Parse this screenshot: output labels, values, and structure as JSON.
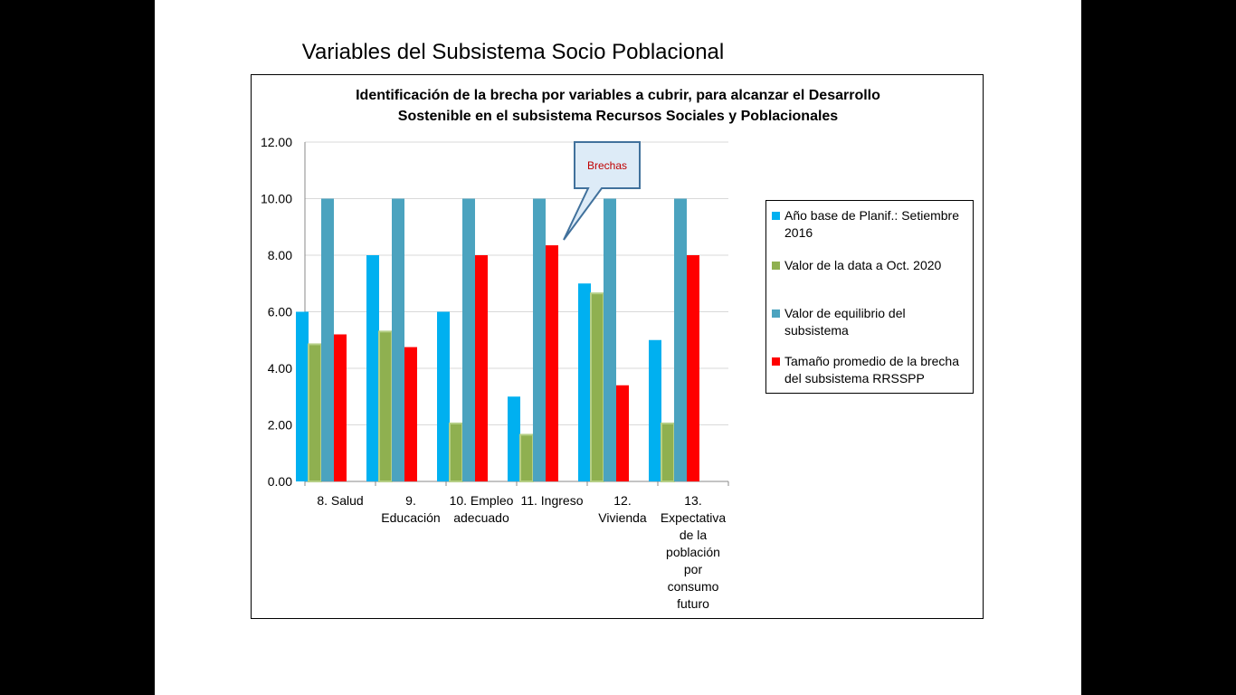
{
  "slide": {
    "title": "Variables del Subsistema Socio Poblacional"
  },
  "chart_data": {
    "type": "bar",
    "title_lines": [
      "Identificación de la brecha por variables a cubrir, para alcanzar el Desarrollo",
      "Sostenible en el subsistema Recursos Sociales y Poblacionales"
    ],
    "categories": [
      [
        "8. Salud"
      ],
      [
        "9.",
        "Educación"
      ],
      [
        "10. Empleo",
        "adecuado"
      ],
      [
        "11. Ingreso"
      ],
      [
        "12.",
        "Vivienda"
      ],
      [
        "13.",
        "Expectativa",
        "de la",
        "población",
        "por",
        "consumo",
        "futuro"
      ]
    ],
    "series": [
      {
        "name": "Año base de Planif.: Setiembre 2016",
        "label_lines": [
          "Año base de Planif.: Setiembre",
          "2016"
        ],
        "color": "#00B0F0",
        "values": [
          6,
          8,
          6,
          3,
          7,
          5
        ]
      },
      {
        "name": "Valor de la data a Oct.  2020",
        "label_lines": [
          "Valor de la data a Oct.  2020"
        ],
        "color": "#8FB050",
        "values": [
          4.85,
          5.3,
          2.05,
          1.65,
          6.65,
          2.05
        ]
      },
      {
        "name": "Valor de equilibrio del subsistema",
        "label_lines": [
          "Valor de equilibrio del",
          "subsistema"
        ],
        "color": "#4BA3BF",
        "values": [
          10,
          10,
          10,
          10,
          10,
          10
        ]
      },
      {
        "name": "Tamaño promedio de la brecha del subsistema RRSSPP",
        "label_lines": [
          "Tamaño promedio de la brecha",
          "del subsistema RRSSPP"
        ],
        "color": "#FF0000",
        "values": [
          5.2,
          4.75,
          8,
          8.35,
          3.4,
          8
        ]
      }
    ],
    "ylim": [
      0,
      12
    ],
    "yticks": [
      "0.00",
      "2.00",
      "4.00",
      "6.00",
      "8.00",
      "10.00",
      "12.00"
    ],
    "grid": true,
    "legend_position": "right",
    "annotation": {
      "text": "Brechas",
      "text_color": "#C00000",
      "fill": "#DDEBF7",
      "border": "#41719C",
      "points_to": {
        "category_index": 3,
        "value": 8.35
      }
    }
  }
}
